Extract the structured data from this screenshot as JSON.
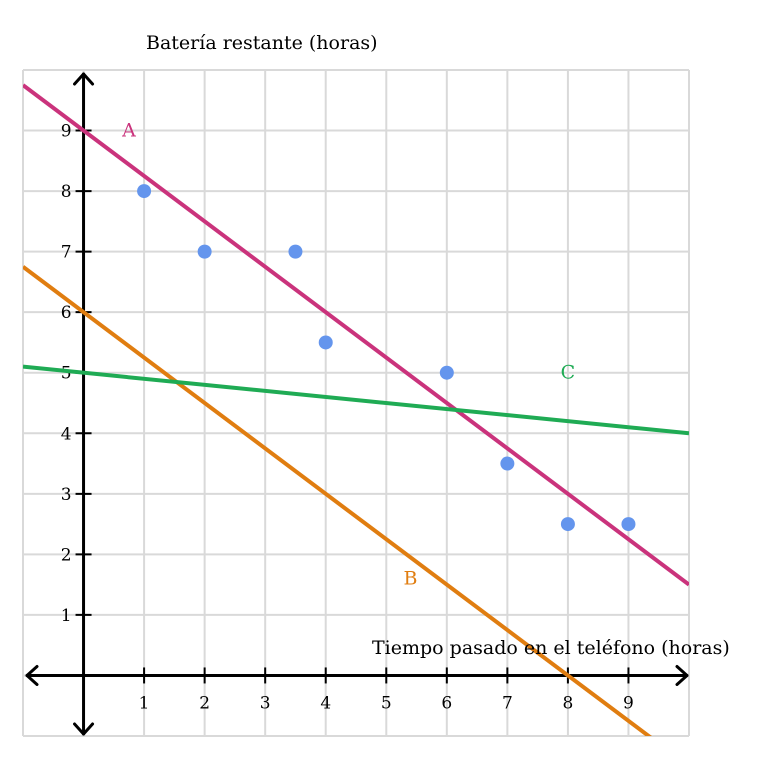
{
  "chart_data": {
    "type": "scatter",
    "ylabel": "Batería restante (horas)",
    "xlabel": "Tiempo pasado en el teléfono (horas)",
    "xlim": [
      -1,
      10
    ],
    "ylim": [
      -1,
      10
    ],
    "x_ticks": [
      1,
      2,
      3,
      4,
      5,
      6,
      7,
      8,
      9
    ],
    "y_ticks": [
      1,
      2,
      3,
      4,
      5,
      6,
      7,
      8,
      9
    ],
    "grid": true,
    "points": [
      {
        "x": 1,
        "y": 8
      },
      {
        "x": 2,
        "y": 7
      },
      {
        "x": 3.5,
        "y": 7
      },
      {
        "x": 4,
        "y": 5.5
      },
      {
        "x": 6,
        "y": 5
      },
      {
        "x": 7,
        "y": 3.5
      },
      {
        "x": 8,
        "y": 2.5
      },
      {
        "x": 9,
        "y": 2.5
      }
    ],
    "lines": [
      {
        "name": "A",
        "intercept": 9,
        "slope": -0.75,
        "color": "#ca337c"
      },
      {
        "name": "B",
        "intercept": 6,
        "slope": -0.75,
        "color": "#e07d10"
      },
      {
        "name": "C",
        "intercept": 5,
        "slope": -0.1,
        "color": "#1fab54"
      }
    ],
    "point_color": "#6495ed"
  }
}
